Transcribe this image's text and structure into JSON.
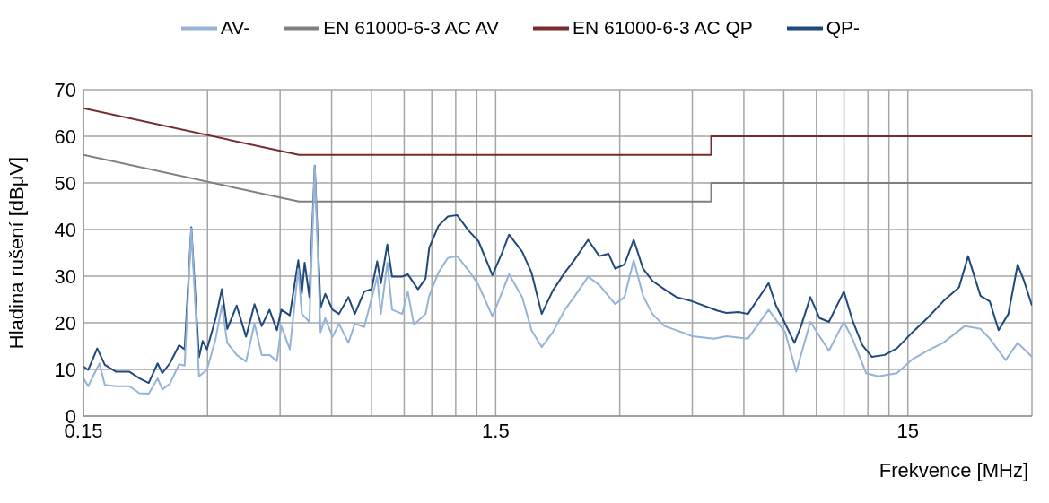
{
  "chart_data": {
    "type": "line",
    "xlabel": "Frekvence [MHz]",
    "ylabel": "Hladina rušení [dBμV]",
    "log": "x",
    "grid": true,
    "legend": "top",
    "marker": "none",
    "line_style": "solid",
    "xlim": [
      0.15,
      30
    ],
    "ylim": [
      0,
      70
    ],
    "xticks": [
      0.15,
      {
        "value": 0.3,
        "label": null
      },
      {
        "value": 0.45,
        "label": null
      },
      {
        "value": 0.6,
        "label": null
      },
      {
        "value": 0.75,
        "label": null
      },
      {
        "value": 0.9,
        "label": null
      },
      {
        "value": 1.05,
        "label": null
      },
      {
        "value": 1.2,
        "label": null
      },
      {
        "value": 1.35,
        "label": null
      },
      1.5,
      {
        "value": 3,
        "label": null
      },
      {
        "value": 4.5,
        "label": null
      },
      {
        "value": 6,
        "label": null
      },
      {
        "value": 7.5,
        "label": null
      },
      {
        "value": 9,
        "label": null
      },
      {
        "value": 10.5,
        "label": null
      },
      {
        "value": 12,
        "label": null
      },
      {
        "value": 13.5,
        "label": null
      },
      15,
      {
        "value": 30,
        "label": null
      }
    ],
    "yticks": [
      0,
      10,
      20,
      30,
      40,
      50,
      60,
      70
    ],
    "series": [
      {
        "name": "EN 61000-6-3 AC QP",
        "color": "#772c2a",
        "x": [
          0.15,
          0.5,
          5,
          5,
          30
        ],
        "values": [
          66,
          56,
          56,
          60,
          60
        ]
      },
      {
        "name": "EN 61000-6-3 AC AV",
        "color": "#808080",
        "x": [
          0.15,
          0.5,
          5,
          5,
          30
        ],
        "values": [
          56,
          46,
          46,
          50,
          50
        ]
      },
      {
        "name": "QP-",
        "color": "#1f497d",
        "x": [
          0.15,
          0.154,
          0.162,
          0.169,
          0.18,
          0.194,
          0.205,
          0.216,
          0.227,
          0.233,
          0.243,
          0.256,
          0.264,
          0.274,
          0.286,
          0.292,
          0.299,
          0.314,
          0.325,
          0.335,
          0.353,
          0.372,
          0.39,
          0.406,
          0.424,
          0.442,
          0.453,
          0.475,
          0.498,
          0.508,
          0.516,
          0.53,
          0.546,
          0.564,
          0.579,
          0.603,
          0.625,
          0.659,
          0.683,
          0.72,
          0.75,
          0.774,
          0.79,
          0.819,
          0.841,
          0.89,
          0.918,
          0.972,
          1.014,
          1.035,
          1.09,
          1.148,
          1.209,
          1.294,
          1.363,
          1.473,
          1.551,
          1.617,
          1.74,
          1.832,
          1.94,
          2.064,
          2.208,
          2.325,
          2.514,
          2.676,
          2.819,
          2.924,
          3.08,
          3.243,
          3.417,
          3.6,
          3.85,
          4.12,
          4.5,
          5.18,
          5.45,
          5.83,
          6.14,
          6.89,
          7.18,
          7.56,
          7.96,
          8.26,
          8.7,
          9.16,
          9.65,
          10.49,
          11.04,
          11.63,
          12.26,
          13.17,
          14.1,
          15.4,
          16.73,
          18.27,
          19.96,
          21.0,
          22.5,
          23.7,
          24.9,
          26.3,
          27.7,
          28.7,
          30
        ],
        "values": [
          10.6,
          9.9,
          14.5,
          11.0,
          9.5,
          9.5,
          8.1,
          7.1,
          11.3,
          9.2,
          11.3,
          15.2,
          14.3,
          40.5,
          12.6,
          16.1,
          14.3,
          21.0,
          27.2,
          18.7,
          23.7,
          17.0,
          24.0,
          19.3,
          22.8,
          18.4,
          22.8,
          21.6,
          33.4,
          26.3,
          32.9,
          25.5,
          53.7,
          23.2,
          26.2,
          22.8,
          21.9,
          25.5,
          21.9,
          26.7,
          27.2,
          33.2,
          28.5,
          36.8,
          29.9,
          29.9,
          30.4,
          27.2,
          29.5,
          36.1,
          40.8,
          42.8,
          43.1,
          39.6,
          37.5,
          30.2,
          34.8,
          38.9,
          35.2,
          30.8,
          21.9,
          26.9,
          30.8,
          33.4,
          37.8,
          34.3,
          34.8,
          31.6,
          32.5,
          37.8,
          31.6,
          29.0,
          27.2,
          25.5,
          24.6,
          22.6,
          22.1,
          22.3,
          21.9,
          28.5,
          23.7,
          19.8,
          15.7,
          19.3,
          25.5,
          21.0,
          20.2,
          26.7,
          20.2,
          15.2,
          12.7,
          13.1,
          14.5,
          18.0,
          21.0,
          24.6,
          27.6,
          34.3,
          25.8,
          24.6,
          18.4,
          21.9,
          32.5,
          29.0,
          23.7
        ]
      },
      {
        "name": "AV-",
        "color": "#95b3d7",
        "x": [
          0.15,
          0.154,
          0.164,
          0.169,
          0.18,
          0.194,
          0.205,
          0.216,
          0.227,
          0.233,
          0.243,
          0.256,
          0.264,
          0.274,
          0.286,
          0.299,
          0.314,
          0.325,
          0.335,
          0.353,
          0.372,
          0.39,
          0.406,
          0.424,
          0.442,
          0.453,
          0.475,
          0.498,
          0.508,
          0.53,
          0.546,
          0.564,
          0.579,
          0.603,
          0.625,
          0.659,
          0.683,
          0.72,
          0.774,
          0.79,
          0.819,
          0.841,
          0.89,
          0.918,
          0.95,
          1.014,
          1.035,
          1.09,
          1.148,
          1.209,
          1.294,
          1.363,
          1.473,
          1.551,
          1.617,
          1.74,
          1.832,
          1.94,
          2.064,
          2.208,
          2.325,
          2.514,
          2.676,
          2.924,
          3.08,
          3.243,
          3.417,
          3.6,
          3.85,
          4.12,
          4.5,
          5.07,
          5.45,
          6.14,
          6.89,
          7.56,
          8.04,
          8.7,
          9.65,
          10.49,
          11.04,
          11.88,
          12.71,
          14.1,
          15.4,
          16.73,
          18.27,
          20.6,
          22.5,
          23.7,
          25.9,
          27.7,
          30
        ],
        "values": [
          8.1,
          6.4,
          11.3,
          6.7,
          6.4,
          6.4,
          4.9,
          4.8,
          8.1,
          5.7,
          6.9,
          11.1,
          10.8,
          40.3,
          8.5,
          9.9,
          16.6,
          23.7,
          15.7,
          13.1,
          11.7,
          19.8,
          13.1,
          13.1,
          11.8,
          19.3,
          14.3,
          31.6,
          21.9,
          20.2,
          53.7,
          18.0,
          21.0,
          17.0,
          19.8,
          15.7,
          19.8,
          19.1,
          29.9,
          21.9,
          32.9,
          22.8,
          21.9,
          26.7,
          19.6,
          21.9,
          25.8,
          30.8,
          33.9,
          34.3,
          31.1,
          28.1,
          21.4,
          26.3,
          30.4,
          25.5,
          18.4,
          14.8,
          18.0,
          22.8,
          25.5,
          29.9,
          28.1,
          24.0,
          25.5,
          33.4,
          25.8,
          21.9,
          19.3,
          18.4,
          17.1,
          16.6,
          17.1,
          16.6,
          22.8,
          17.9,
          9.5,
          20.2,
          14.0,
          20.2,
          16.3,
          9.2,
          8.5,
          9.2,
          12.2,
          14.0,
          15.7,
          19.3,
          18.7,
          16.6,
          12.0,
          15.7,
          12.7
        ]
      }
    ]
  }
}
